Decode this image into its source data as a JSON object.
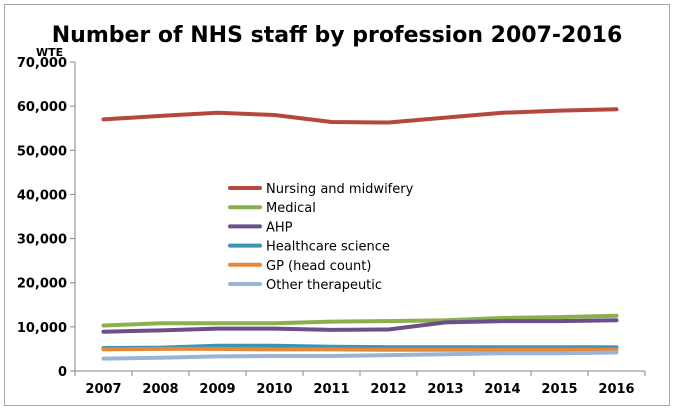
{
  "chart_data": {
    "type": "line",
    "title": "Number of NHS staff by profession 2007-2016",
    "ylabel": "WTE",
    "xlabel": "",
    "x": [
      "2007",
      "2008",
      "2009",
      "2010",
      "2011",
      "2012",
      "2013",
      "2014",
      "2015",
      "2016"
    ],
    "ylim": [
      0,
      70000
    ],
    "yticks": [
      "0",
      "10,000",
      "20,000",
      "30,000",
      "40,000",
      "50,000",
      "60,000",
      "70,000"
    ],
    "grid": false,
    "legend_position": "center",
    "series": [
      {
        "name": "Nursing and midwifery",
        "color": "#b5473f",
        "values": [
          57000,
          57800,
          58500,
          58000,
          56400,
          56300,
          57400,
          58500,
          59000,
          59300
        ]
      },
      {
        "name": "Medical",
        "color": "#8bb04b",
        "values": [
          10300,
          10800,
          10800,
          10800,
          11200,
          11300,
          11500,
          12000,
          12200,
          12500
        ]
      },
      {
        "name": "AHP",
        "color": "#6b4f8a",
        "values": [
          8900,
          9200,
          9600,
          9600,
          9300,
          9400,
          11000,
          11300,
          11300,
          11500
        ]
      },
      {
        "name": "Healthcare science",
        "color": "#3a95b5",
        "values": [
          5200,
          5300,
          5700,
          5700,
          5500,
          5400,
          5400,
          5400,
          5400,
          5400
        ]
      },
      {
        "name": "GP (head count)",
        "color": "#e6883a",
        "values": [
          4900,
          5000,
          5000,
          4900,
          4900,
          4800,
          4800,
          4800,
          4800,
          4800
        ]
      },
      {
        "name": "Other therapeutic",
        "color": "#9cb3d8",
        "values": [
          2800,
          3000,
          3300,
          3400,
          3400,
          3600,
          3800,
          4000,
          4000,
          4200
        ]
      }
    ]
  }
}
